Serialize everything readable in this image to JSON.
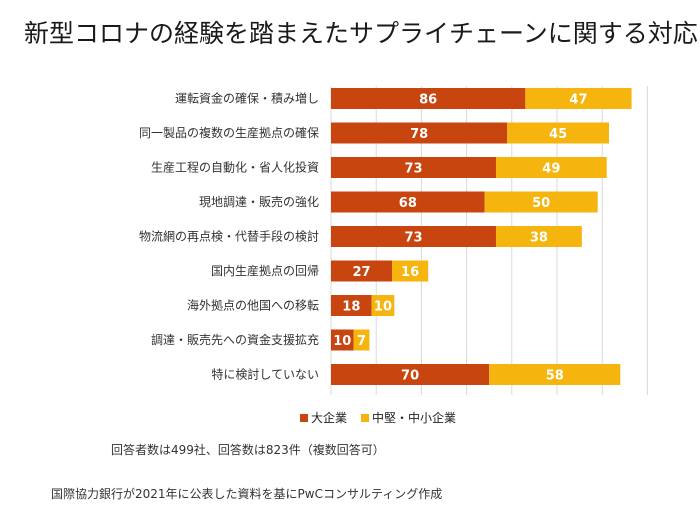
{
  "title": "新型コロナの経験を踏まえたサプライチェーンに関する対応",
  "colors": {
    "large": "#C84510",
    "smb": "#F5B40E"
  },
  "chart_data": {
    "type": "bar",
    "orientation": "horizontal",
    "stacked": true,
    "categories": [
      "運転資金の確保・積み増し",
      "同一製品の複数の生産拠点の確保",
      "生産工程の自動化・省人化投資",
      "現地調達・販売の強化",
      "物流網の再点検・代替手段の検討",
      "国内生産拠点の回帰",
      "海外拠点の他国への移転",
      "調達・販売先への資金支援拡充",
      "特に検討していない"
    ],
    "series": [
      {
        "name": "大企業",
        "values": [
          86,
          78,
          73,
          68,
          73,
          27,
          18,
          10,
          70
        ]
      },
      {
        "name": "中堅・中小企業",
        "values": [
          47,
          45,
          49,
          50,
          38,
          16,
          10,
          7,
          58
        ]
      }
    ],
    "xlim": [
      0,
      140
    ],
    "grid": true,
    "legend_position": "bottom"
  },
  "legend": [
    "大企業",
    "中堅・中小企業"
  ],
  "notes": {
    "respondents": "回答者数は499社、回答数は823件（複数回答可）",
    "source": "国際協力銀行が2021年に公表した資料を基にPwCコンサルティング作成"
  }
}
